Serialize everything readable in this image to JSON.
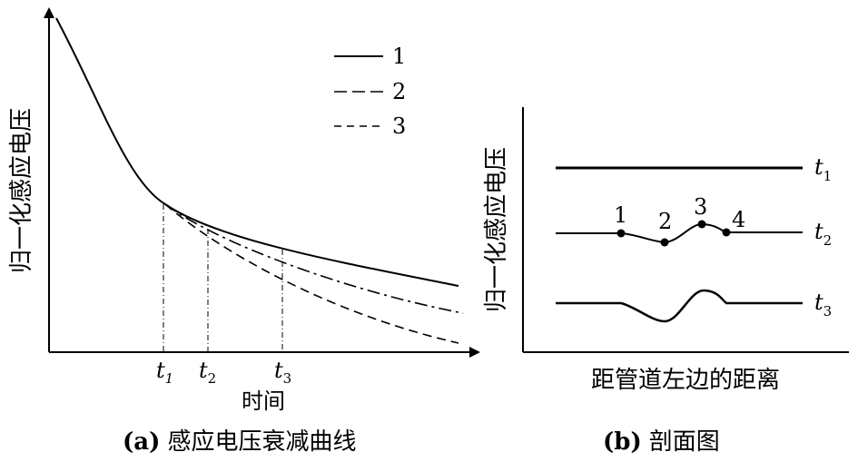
{
  "panel_a": {
    "y_axis_label": "归一化感应电压",
    "x_axis_label": "时间",
    "caption_prefix": "(a)",
    "caption_text": "感应电压衰减曲线",
    "legend": [
      "1",
      "2",
      "3"
    ],
    "time_marks": [
      {
        "letter": "t",
        "sub": "1"
      },
      {
        "letter": "t",
        "sub": "2"
      },
      {
        "letter": "t",
        "sub": "3"
      }
    ]
  },
  "panel_b": {
    "y_axis_label": "归一化感应电压",
    "x_axis_label": "距管道左边的距离",
    "caption_prefix": "(b)",
    "caption_text": "剖面图",
    "profile_labels": [
      {
        "letter": "t",
        "sub": "1"
      },
      {
        "letter": "t",
        "sub": "2"
      },
      {
        "letter": "t",
        "sub": "3"
      }
    ],
    "point_labels": [
      "1",
      "2",
      "3",
      "4"
    ]
  }
}
